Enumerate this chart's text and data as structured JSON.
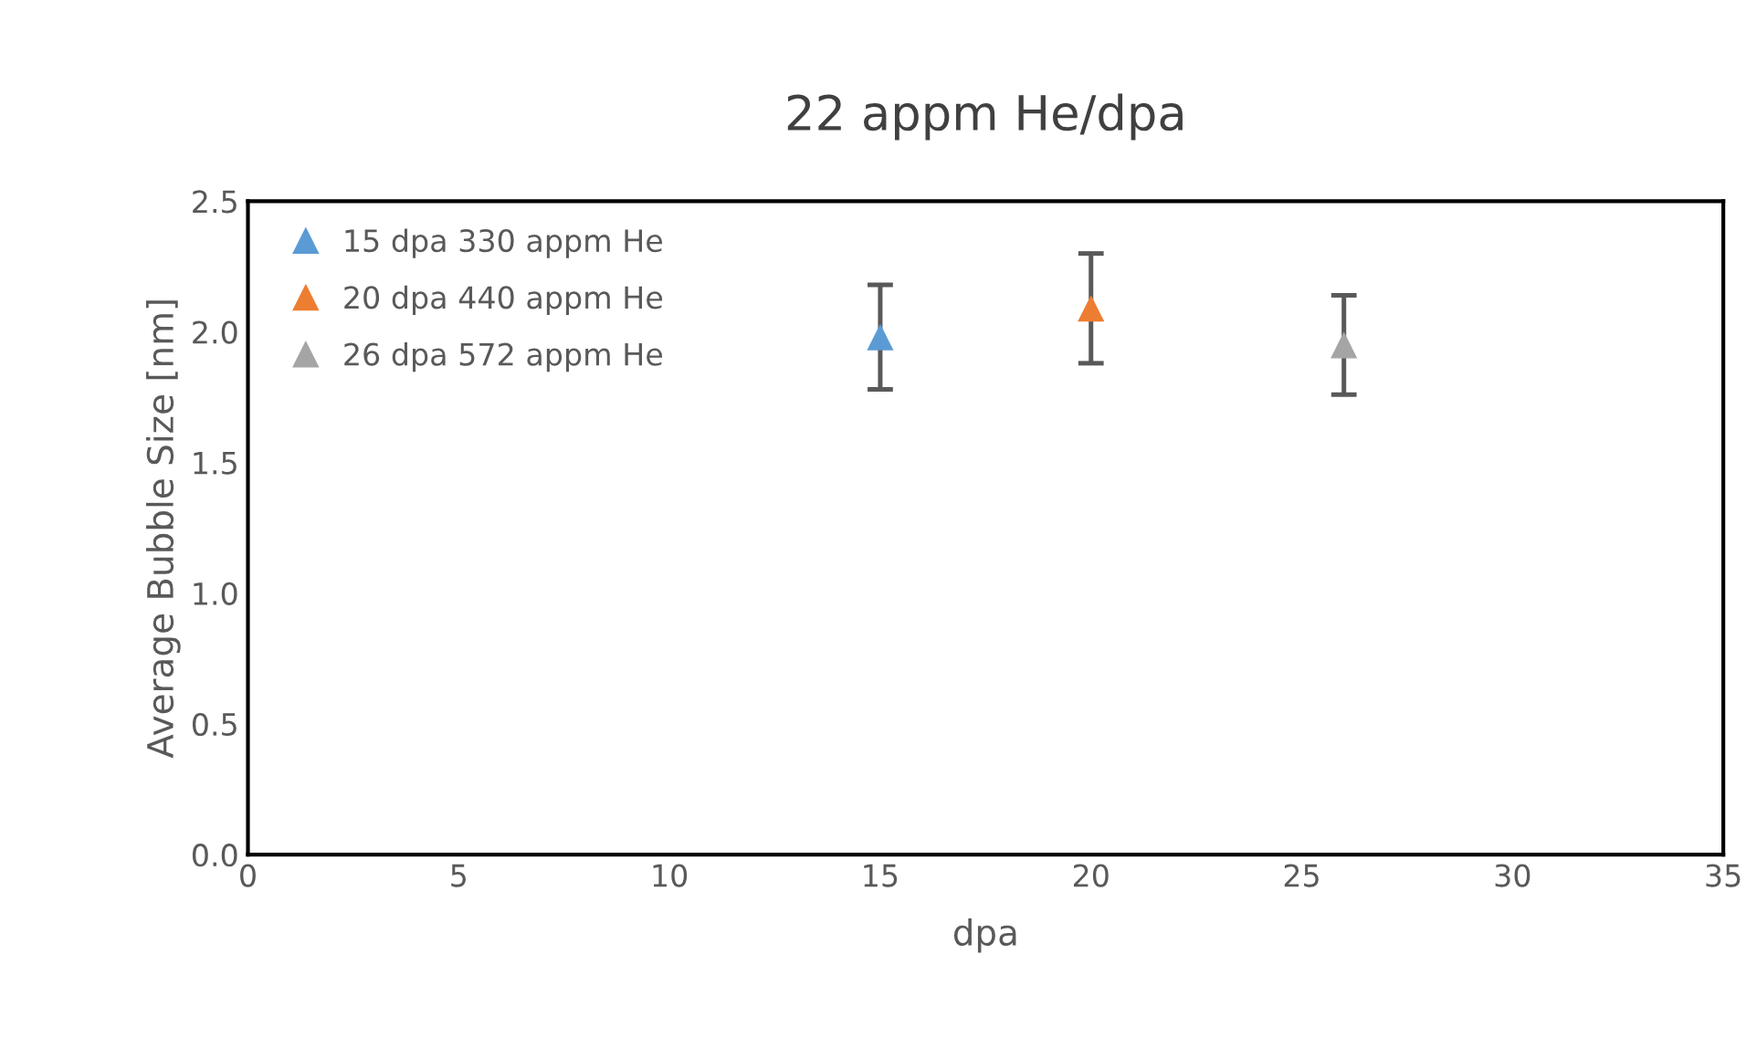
{
  "chart_data": {
    "type": "scatter",
    "title": "22 appm He/dpa",
    "xlabel": "dpa",
    "ylabel": "Average Bubble Size [nm]",
    "series": [
      {
        "name": "15 dpa 330 appm He",
        "color": "#5b9bd5",
        "x": [
          15
        ],
        "values": [
          1.98
        ],
        "errors": [
          0.2
        ]
      },
      {
        "name": "20 dpa 440 appm He",
        "color": "#ed7d31",
        "x": [
          20
        ],
        "values": [
          2.09
        ],
        "errors": [
          0.21
        ]
      },
      {
        "name": "26 dpa 572 appm He",
        "color": "#a5a5a5",
        "x": [
          26
        ],
        "values": [
          1.95
        ],
        "errors": [
          0.19
        ]
      }
    ],
    "xlim": [
      0,
      35
    ],
    "xticks": [
      0,
      5,
      10,
      15,
      20,
      25,
      30,
      35
    ],
    "ylim": [
      0,
      2.5
    ],
    "yticks": [
      {
        "value": 0,
        "label": "0.0"
      },
      {
        "value": 0.5,
        "label": "0.5"
      },
      {
        "value": 1,
        "label": "1.0"
      },
      {
        "value": 1.5,
        "label": "1.5"
      },
      {
        "value": 2,
        "label": "2.0"
      },
      {
        "value": 2.5,
        "label": "2.5"
      }
    ],
    "marker": "triangle",
    "grid": false,
    "legend": "top left"
  }
}
